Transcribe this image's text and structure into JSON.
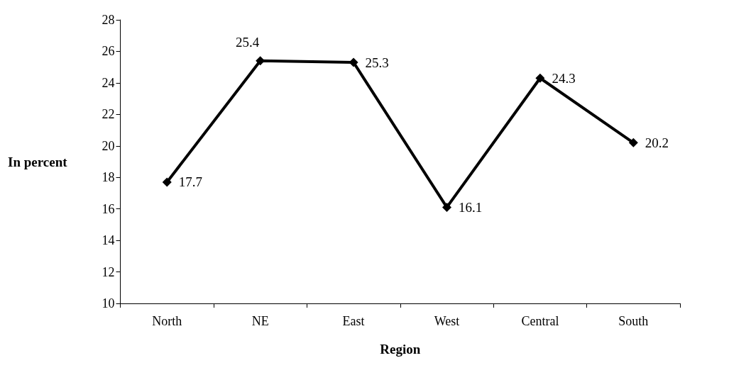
{
  "chart_data": {
    "type": "line",
    "xlabel": "Region",
    "ylabel": "In percent",
    "categories": [
      "North",
      "NE",
      "East",
      "West",
      "Central",
      "South"
    ],
    "series": [
      {
        "color": "#000000",
        "values": [
          17.7,
          25.4,
          25.3,
          16.1,
          24.3,
          20.2
        ]
      }
    ],
    "ylim": [
      10,
      28
    ],
    "yticks": [
      10,
      12,
      14,
      16,
      18,
      20,
      22,
      24,
      26,
      28
    ],
    "data_labels": true,
    "marker": "diamond",
    "line_style": "solid",
    "grid": false
  }
}
